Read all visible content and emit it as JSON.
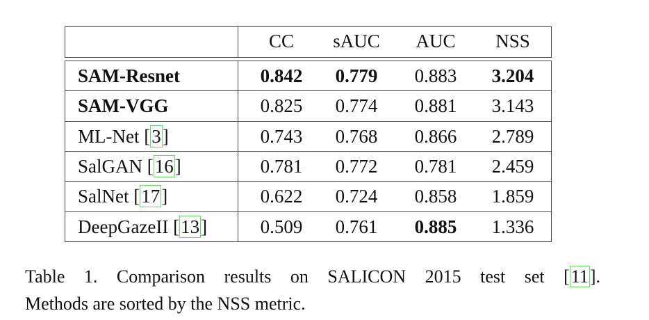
{
  "table": {
    "headers": [
      "",
      "CC",
      "sAUC",
      "AUC",
      "NSS"
    ],
    "rows": [
      {
        "method": "SAM-Resnet",
        "cite": "",
        "values": [
          "0.842",
          "0.779",
          "0.883",
          "3.204"
        ],
        "bold_method": true,
        "bold": [
          true,
          true,
          false,
          true
        ]
      },
      {
        "method": "SAM-VGG",
        "cite": "",
        "values": [
          "0.825",
          "0.774",
          "0.881",
          "3.143"
        ],
        "bold_method": true,
        "bold": [
          false,
          false,
          false,
          false
        ]
      },
      {
        "method": "ML-Net ",
        "cite": "3",
        "values": [
          "0.743",
          "0.768",
          "0.866",
          "2.789"
        ],
        "bold_method": false,
        "bold": [
          false,
          false,
          false,
          false
        ]
      },
      {
        "method": "SalGAN ",
        "cite": "16",
        "values": [
          "0.781",
          "0.772",
          "0.781",
          "2.459"
        ],
        "bold_method": false,
        "bold": [
          false,
          false,
          false,
          false
        ]
      },
      {
        "method": "SalNet ",
        "cite": "17",
        "values": [
          "0.622",
          "0.724",
          "0.858",
          "1.859"
        ],
        "bold_method": false,
        "bold": [
          false,
          false,
          false,
          false
        ]
      },
      {
        "method": "DeepGazeII ",
        "cite": "13",
        "values": [
          "0.509",
          "0.761",
          "0.885",
          "1.336"
        ],
        "bold_method": false,
        "bold": [
          false,
          false,
          true,
          false
        ]
      }
    ]
  },
  "caption": {
    "line1": "Table 1. Comparison results on SALICON 2015 test set ",
    "cite": "11",
    "line1_end": ".",
    "line2": "Methods are sorted by the NSS metric."
  },
  "colors": {
    "citation_box": "#5ee05e"
  }
}
